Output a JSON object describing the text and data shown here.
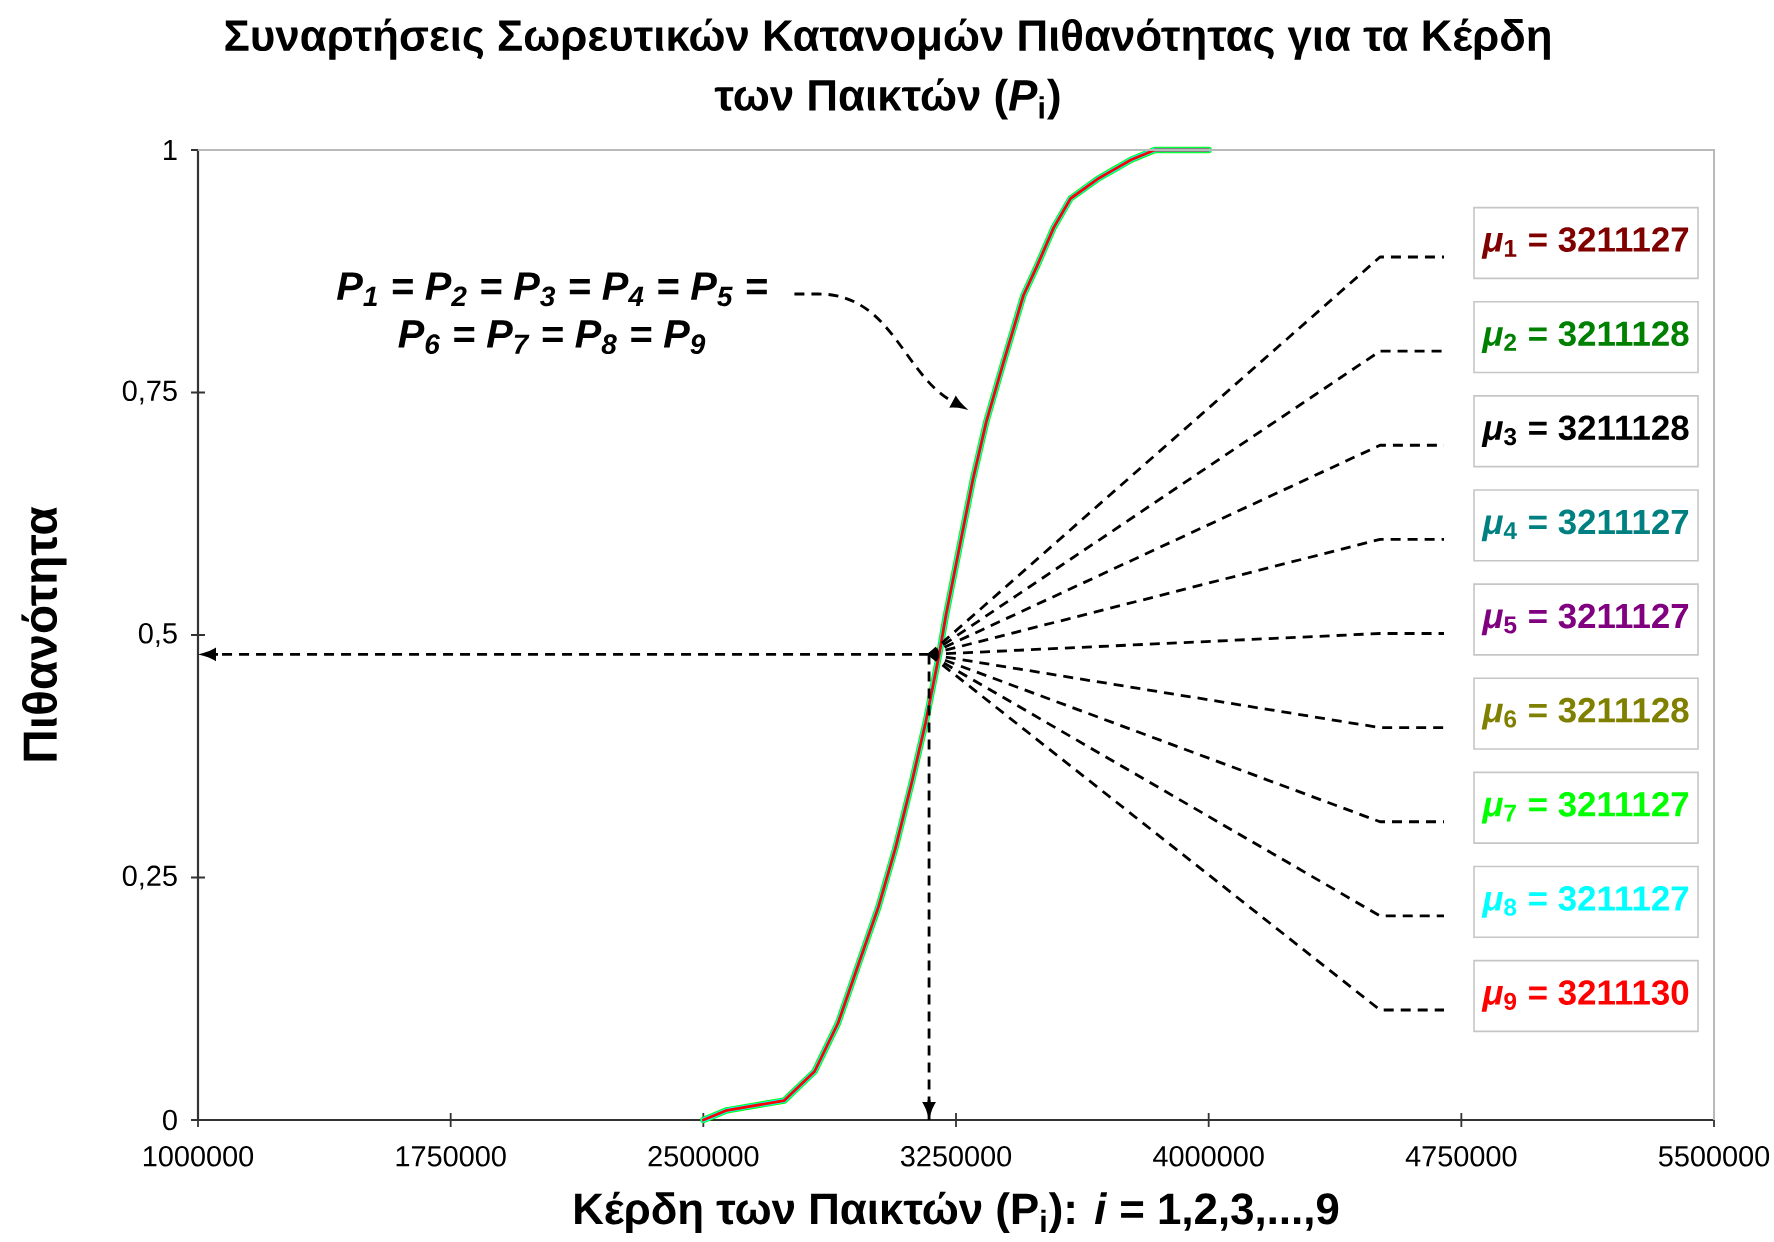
{
  "chart_data": {
    "type": "line",
    "title": "Συναρτήσεις Σωρευτικών Κατανομών Πιθανότητας για τα Κέρδη των Παικτών (*P*$_{i}$)",
    "xlabel": "Κέρδη των Παικτών (P$_{i}$): *i* = 1,2,3,...,9",
    "ylabel": "Πιθανότητα",
    "x": [
      2500000,
      2570000,
      2740000,
      2830000,
      2900000,
      2960000,
      3020000,
      3070000,
      3120000,
      3160000,
      3200000,
      3220000,
      3260000,
      3300000,
      3340000,
      3390000,
      3450000,
      3490000,
      3540000,
      3590000,
      3670000,
      3720000,
      3770000,
      3840000,
      4000000
    ],
    "series": [
      {
        "name": "*μ*$_{1}$ = 3211127",
        "color": "#800000",
        "values": [
          null,
          null,
          null,
          null,
          null,
          null,
          null,
          null,
          null,
          null,
          null,
          null,
          null,
          null,
          null,
          null,
          null,
          null,
          null,
          null,
          null,
          null,
          null,
          null,
          null
        ]
      },
      {
        "name": "*μ*$_{2}$ = 3211128",
        "color": "#008000",
        "values": [
          null,
          null,
          null,
          null,
          null,
          null,
          null,
          null,
          null,
          null,
          null,
          null,
          null,
          null,
          null,
          null,
          null,
          null,
          null,
          null,
          null,
          null,
          null,
          null,
          null
        ]
      },
      {
        "name": "*μ*$_{3}$ = 3211128",
        "color": "#000000",
        "values": [
          null,
          null,
          null,
          null,
          null,
          null,
          null,
          null,
          null,
          null,
          null,
          null,
          null,
          null,
          null,
          null,
          null,
          null,
          null,
          null,
          null,
          null,
          null,
          null,
          null
        ]
      },
      {
        "name": "*μ*$_{4}$ = 3211127",
        "color": "#008080",
        "values": [
          null,
          null,
          null,
          null,
          null,
          null,
          null,
          null,
          null,
          null,
          null,
          null,
          null,
          null,
          null,
          null,
          null,
          null,
          null,
          null,
          null,
          null,
          null,
          null,
          null
        ]
      },
      {
        "name": "*μ*$_{5}$ = 3211127",
        "color": "#800080",
        "values": [
          null,
          null,
          null,
          null,
          null,
          null,
          null,
          null,
          null,
          null,
          null,
          null,
          null,
          null,
          null,
          null,
          null,
          null,
          null,
          null,
          null,
          null,
          null,
          null,
          null
        ]
      },
      {
        "name": "*μ*$_{6}$ = 3211128",
        "color": "#808000",
        "values": [
          null,
          null,
          null,
          null,
          null,
          null,
          null,
          null,
          null,
          null,
          null,
          null,
          null,
          null,
          null,
          null,
          null,
          null,
          null,
          null,
          null,
          null,
          null,
          null,
          null
        ]
      },
      {
        "name": "*μ*$_{7}$ = 3211127",
        "color": "#00ff00",
        "values": [
          0,
          0.01,
          0.02,
          0.05,
          0.1,
          0.16,
          0.22,
          0.28,
          0.35,
          0.41,
          0.48,
          0.52,
          0.59,
          0.66,
          0.72,
          0.78,
          0.85,
          0.88,
          0.92,
          0.95,
          0.97,
          0.98,
          0.99,
          1,
          1
        ]
      },
      {
        "name": "*μ*$_{8}$ = 3211127",
        "color": "#00ffff",
        "values": [
          0,
          0.01,
          0.02,
          0.05,
          0.1,
          0.16,
          0.22,
          0.28,
          0.35,
          0.41,
          0.48,
          0.52,
          0.59,
          0.66,
          0.72,
          0.78,
          0.85,
          0.88,
          0.92,
          0.95,
          0.97,
          0.98,
          0.99,
          1,
          1
        ]
      },
      {
        "name": "*μ*$_{9}$ = 3211130",
        "color": "#ff0000",
        "values": [
          0,
          0.01,
          0.02,
          0.05,
          0.1,
          0.16,
          0.22,
          0.28,
          0.35,
          0.41,
          0.48,
          0.52,
          0.59,
          0.66,
          0.72,
          0.78,
          0.85,
          0.88,
          0.92,
          0.95,
          0.97,
          0.98,
          0.99,
          1,
          1
        ]
      }
    ],
    "xlim": [
      1000000,
      5500000
    ],
    "xticks": [
      1000000,
      1750000,
      2500000,
      3250000,
      4000000,
      4750000,
      5500000
    ],
    "ylim": [
      0,
      1
    ],
    "yticks": [
      0,
      {
        "value": 0.25,
        "label": "0,25"
      },
      {
        "value": 0.5,
        "label": "0,5"
      },
      {
        "value": 0.75,
        "label": "0,75"
      },
      1
    ],
    "line_style": "solid",
    "ref_lines": [
      {
        "axis": "x",
        "value": 3170000,
        "line_style": "dashed"
      },
      {
        "axis": "y",
        "value": 0.48,
        "line_style": "dashed"
      }
    ],
    "annotations": [
      "P$_{1}$ = P$_{2}$ = P$_{3}$ = P$_{4}$ = P$_{5}$ = P$_{6}$ = P$_{7}$ = P$_{8}$ = P$_{9}$"
    ]
  }
}
